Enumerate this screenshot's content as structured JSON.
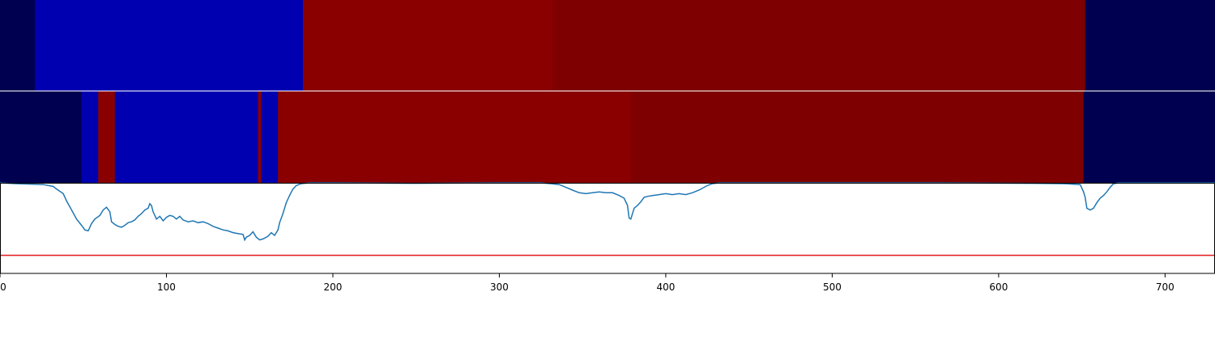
{
  "chart_data": {
    "type": "heatmap",
    "title": "",
    "xlabel": "",
    "ylabel": "",
    "xlim": [
      0,
      730
    ],
    "xticks": [
      0,
      100,
      200,
      300,
      400,
      500,
      600,
      700
    ],
    "grid": false,
    "legend": "none",
    "segment_rows": [
      {
        "segments": [
          {
            "start": 0,
            "end": 21,
            "color": "#000050"
          },
          {
            "start": 21,
            "end": 182,
            "color": "#0000b0"
          },
          {
            "start": 182,
            "end": 332,
            "color": "#8a0000"
          },
          {
            "start": 332,
            "end": 652,
            "color": "#7e0000"
          },
          {
            "start": 652,
            "end": 730,
            "color": "#000050"
          }
        ]
      },
      {
        "segments": [
          {
            "start": 0,
            "end": 49,
            "color": "#000050"
          },
          {
            "start": 49,
            "end": 59,
            "color": "#0000b0"
          },
          {
            "start": 59,
            "end": 69,
            "color": "#8a0000"
          },
          {
            "start": 69,
            "end": 155,
            "color": "#0000b0"
          },
          {
            "start": 155,
            "end": 157,
            "color": "#8a0000"
          },
          {
            "start": 157,
            "end": 167,
            "color": "#0000b0"
          },
          {
            "start": 167,
            "end": 379,
            "color": "#8a0000"
          },
          {
            "start": 379,
            "end": 651,
            "color": "#7e0000"
          },
          {
            "start": 651,
            "end": 730,
            "color": "#000050"
          }
        ]
      }
    ],
    "line_series": {
      "color": "#1f77b4",
      "ylim": [
        0,
        1
      ],
      "points": [
        [
          0,
          1.0
        ],
        [
          10,
          0.99
        ],
        [
          20,
          0.985
        ],
        [
          26,
          0.98
        ],
        [
          32,
          0.96
        ],
        [
          34,
          0.93
        ],
        [
          38,
          0.88
        ],
        [
          40,
          0.8
        ],
        [
          43,
          0.7
        ],
        [
          46,
          0.6
        ],
        [
          49,
          0.53
        ],
        [
          51,
          0.48
        ],
        [
          53,
          0.47
        ],
        [
          55,
          0.55
        ],
        [
          57,
          0.6
        ],
        [
          60,
          0.64
        ],
        [
          62,
          0.7
        ],
        [
          64,
          0.73
        ],
        [
          66,
          0.68
        ],
        [
          67,
          0.57
        ],
        [
          69,
          0.54
        ],
        [
          71,
          0.52
        ],
        [
          73,
          0.51
        ],
        [
          75,
          0.53
        ],
        [
          77,
          0.56
        ],
        [
          79,
          0.57
        ],
        [
          81,
          0.59
        ],
        [
          83,
          0.63
        ],
        [
          85,
          0.66
        ],
        [
          87,
          0.7
        ],
        [
          89,
          0.72
        ],
        [
          90,
          0.77
        ],
        [
          91,
          0.75
        ],
        [
          92,
          0.68
        ],
        [
          94,
          0.6
        ],
        [
          96,
          0.63
        ],
        [
          98,
          0.58
        ],
        [
          100,
          0.62
        ],
        [
          102,
          0.64
        ],
        [
          104,
          0.63
        ],
        [
          106,
          0.6
        ],
        [
          108,
          0.63
        ],
        [
          110,
          0.59
        ],
        [
          113,
          0.57
        ],
        [
          116,
          0.58
        ],
        [
          119,
          0.56
        ],
        [
          122,
          0.57
        ],
        [
          125,
          0.55
        ],
        [
          128,
          0.52
        ],
        [
          131,
          0.5
        ],
        [
          134,
          0.48
        ],
        [
          137,
          0.47
        ],
        [
          140,
          0.45
        ],
        [
          143,
          0.44
        ],
        [
          146,
          0.43
        ],
        [
          147,
          0.37
        ],
        [
          148,
          0.4
        ],
        [
          150,
          0.42
        ],
        [
          152,
          0.46
        ],
        [
          154,
          0.4
        ],
        [
          156,
          0.37
        ],
        [
          158,
          0.38
        ],
        [
          161,
          0.41
        ],
        [
          163,
          0.45
        ],
        [
          165,
          0.42
        ],
        [
          167,
          0.48
        ],
        [
          168,
          0.56
        ],
        [
          170,
          0.66
        ],
        [
          172,
          0.78
        ],
        [
          174,
          0.86
        ],
        [
          176,
          0.93
        ],
        [
          178,
          0.97
        ],
        [
          181,
          0.99
        ],
        [
          186,
          1.0
        ],
        [
          200,
          1.0
        ],
        [
          250,
          0.995
        ],
        [
          300,
          1.0
        ],
        [
          325,
          1.0
        ],
        [
          331,
          0.99
        ],
        [
          336,
          0.98
        ],
        [
          340,
          0.95
        ],
        [
          344,
          0.92
        ],
        [
          348,
          0.89
        ],
        [
          352,
          0.88
        ],
        [
          356,
          0.89
        ],
        [
          360,
          0.9
        ],
        [
          364,
          0.89
        ],
        [
          368,
          0.89
        ],
        [
          372,
          0.86
        ],
        [
          375,
          0.83
        ],
        [
          377,
          0.75
        ],
        [
          378,
          0.61
        ],
        [
          379,
          0.6
        ],
        [
          381,
          0.72
        ],
        [
          383,
          0.75
        ],
        [
          385,
          0.79
        ],
        [
          387,
          0.84
        ],
        [
          389,
          0.85
        ],
        [
          392,
          0.86
        ],
        [
          396,
          0.87
        ],
        [
          400,
          0.88
        ],
        [
          404,
          0.87
        ],
        [
          408,
          0.88
        ],
        [
          412,
          0.87
        ],
        [
          416,
          0.89
        ],
        [
          420,
          0.92
        ],
        [
          425,
          0.97
        ],
        [
          428,
          0.99
        ],
        [
          432,
          1.0
        ],
        [
          460,
          1.0
        ],
        [
          500,
          1.0
        ],
        [
          560,
          1.0
        ],
        [
          620,
          0.995
        ],
        [
          640,
          0.99
        ],
        [
          649,
          0.98
        ],
        [
          651,
          0.9
        ],
        [
          652,
          0.84
        ],
        [
          653,
          0.72
        ],
        [
          655,
          0.7
        ],
        [
          657,
          0.72
        ],
        [
          659,
          0.78
        ],
        [
          661,
          0.83
        ],
        [
          663,
          0.86
        ],
        [
          665,
          0.9
        ],
        [
          667,
          0.95
        ],
        [
          669,
          0.99
        ],
        [
          672,
          1.0
        ],
        [
          730,
          1.0
        ]
      ]
    },
    "threshold_line": {
      "value": 0.2,
      "color": "#e31a1c"
    }
  }
}
